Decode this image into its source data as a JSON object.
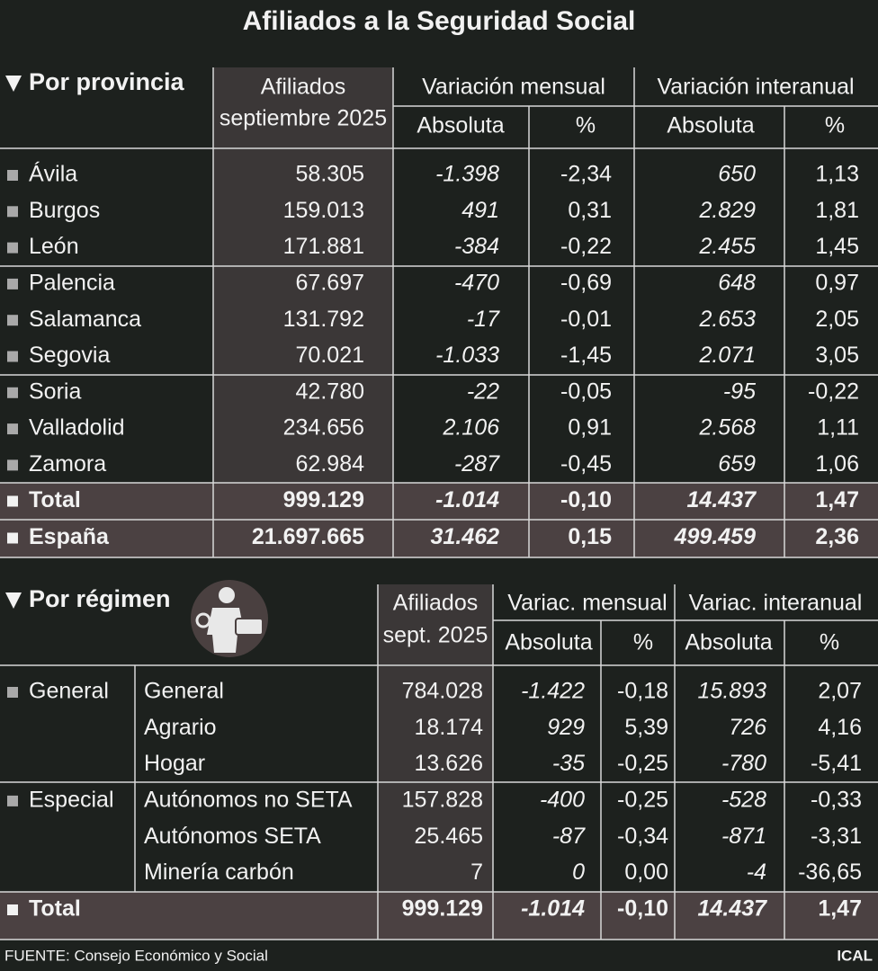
{
  "title": "Afiliados a la Seguridad Social",
  "provincia": {
    "heading": "Por provincia",
    "header": {
      "afiliados": [
        "Afiliados",
        "septiembre 2025"
      ],
      "mensual": "Variación mensual",
      "interanual": "Variación interanual",
      "sub": [
        "Absoluta",
        "%",
        "Absoluta",
        "%"
      ]
    },
    "rows": [
      [
        "Ávila",
        "58.305",
        "-1.398",
        "-2,34",
        "650",
        "1,13"
      ],
      [
        "Burgos",
        "159.013",
        "491",
        "0,31",
        "2.829",
        "1,81"
      ],
      [
        "León",
        "171.881",
        "-384",
        "-0,22",
        "2.455",
        "1,45"
      ],
      [
        "Palencia",
        "67.697",
        "-470",
        "-0,69",
        "648",
        "0,97"
      ],
      [
        "Salamanca",
        "131.792",
        "-17",
        "-0,01",
        "2.653",
        "2,05"
      ],
      [
        "Segovia",
        "70.021",
        "-1.033",
        "-1,45",
        "2.071",
        "3,05"
      ],
      [
        "Soria",
        "42.780",
        "-22",
        "-0,05",
        "-95",
        "-0,22"
      ],
      [
        "Valladolid",
        "234.656",
        "2.106",
        "0,91",
        "2.568",
        "1,11"
      ],
      [
        "Zamora",
        "62.984",
        "-287",
        "-0,45",
        "659",
        "1,06"
      ]
    ],
    "totals": [
      [
        "Total",
        "999.129",
        "-1.014",
        "-0,10",
        "14.437",
        "1,47"
      ],
      [
        "España",
        "21.697.665",
        "31.462",
        "0,15",
        "499.459",
        "2,36"
      ]
    ]
  },
  "regimen": {
    "heading": "Por régimen",
    "header": {
      "afiliados": [
        "Afiliados",
        "sept. 2025"
      ],
      "mensual": "Variac. mensual",
      "interanual": "Variac. interanual",
      "sub": [
        "Absoluta",
        "%",
        "Absoluta",
        "%"
      ]
    },
    "groups": [
      {
        "label": "General",
        "rows": [
          [
            "General",
            "784.028",
            "-1.422",
            "-0,18",
            "15.893",
            "2,07"
          ],
          [
            "Agrario",
            "18.174",
            "929",
            "5,39",
            "726",
            "4,16"
          ],
          [
            "Hogar",
            "13.626",
            "-35",
            "-0,25",
            "-780",
            "-5,41"
          ]
        ]
      },
      {
        "label": "Especial",
        "rows": [
          [
            "Autónomos no SETA",
            "157.828",
            "-400",
            "-0,25",
            "-528",
            "-0,33"
          ],
          [
            "Autónomos SETA",
            "25.465",
            "-87",
            "-0,34",
            "-871",
            "-3,31"
          ],
          [
            "Minería carbón",
            "7",
            "0",
            "0,00",
            "-4",
            "-36,65"
          ]
        ]
      }
    ],
    "total": [
      "Total",
      "999.129",
      "-1.014",
      "-0,10",
      "14.437",
      "1,47"
    ]
  },
  "footer": {
    "source": "FUENTE: Consejo Económico y Social",
    "brand": "ICAL"
  }
}
